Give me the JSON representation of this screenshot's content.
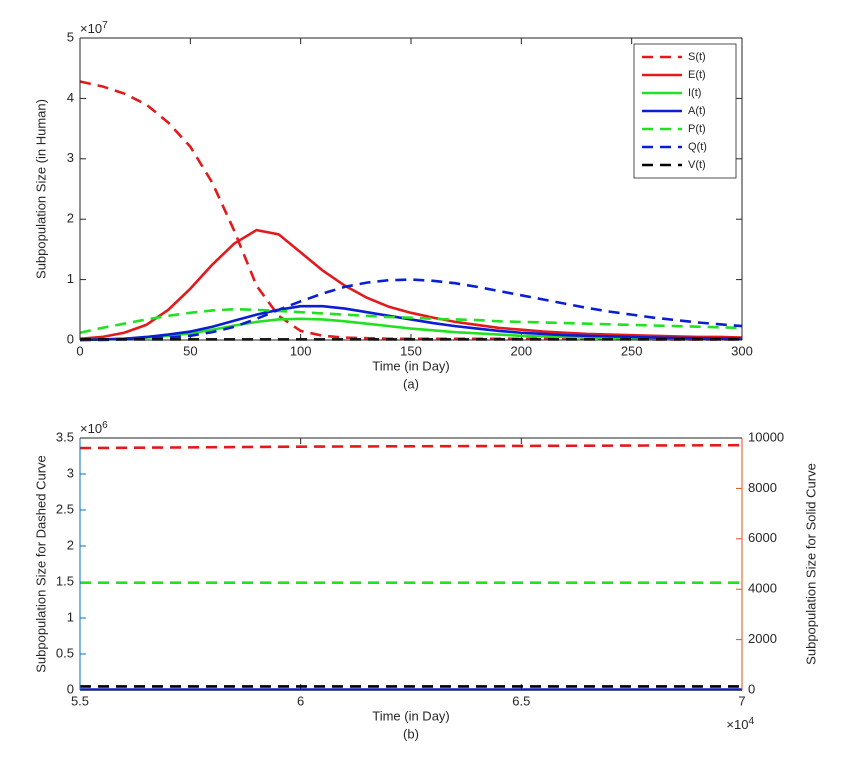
{
  "chart_data": [
    {
      "type": "line",
      "xlabel": "Time (in Day)",
      "ylabel": "Subpopulation Size (in Human)",
      "caption": "(a)",
      "y_multiplier": {
        "base": "×10",
        "exponent": "7"
      },
      "x": [
        0,
        10,
        20,
        30,
        40,
        50,
        60,
        70,
        80,
        90,
        100,
        110,
        120,
        130,
        140,
        150,
        160,
        170,
        180,
        190,
        200,
        210,
        220,
        230,
        240,
        250,
        260,
        270,
        280,
        290,
        300
      ],
      "xlim": [
        0,
        300
      ],
      "xticks": [
        0,
        50,
        100,
        150,
        200,
        250,
        300
      ],
      "ylim": [
        0,
        5
      ],
      "yticks": [
        0,
        1,
        2,
        3,
        4,
        5
      ],
      "legend": "top-right",
      "series": [
        {
          "name": "S(t)",
          "color": "#e31a1c",
          "style": "dashed",
          "values": [
            4.28,
            4.2,
            4.08,
            3.9,
            3.6,
            3.2,
            2.6,
            1.8,
            0.9,
            0.4,
            0.15,
            0.07,
            0.04,
            0.03,
            0.02,
            0.02,
            0.02,
            0.02,
            0.02,
            0.02,
            0.02,
            0.02,
            0.02,
            0.015,
            0.015,
            0.015,
            0.01,
            0.01,
            0.01,
            0.01,
            0.01
          ]
        },
        {
          "name": "E(t)",
          "color": "#e31a1c",
          "style": "solid",
          "values": [
            0.02,
            0.05,
            0.12,
            0.25,
            0.5,
            0.85,
            1.25,
            1.6,
            1.82,
            1.75,
            1.45,
            1.15,
            0.9,
            0.7,
            0.55,
            0.45,
            0.37,
            0.3,
            0.25,
            0.2,
            0.17,
            0.14,
            0.12,
            0.1,
            0.09,
            0.08,
            0.07,
            0.06,
            0.05,
            0.05,
            0.04
          ]
        },
        {
          "name": "I(t)",
          "color": "#22e022",
          "style": "solid",
          "values": [
            0,
            0.01,
            0.02,
            0.04,
            0.07,
            0.11,
            0.17,
            0.24,
            0.3,
            0.34,
            0.35,
            0.34,
            0.31,
            0.27,
            0.23,
            0.19,
            0.16,
            0.13,
            0.11,
            0.09,
            0.07,
            0.06,
            0.05,
            0.04,
            0.035,
            0.03,
            0.025,
            0.02,
            0.02,
            0.015,
            0.015
          ]
        },
        {
          "name": "A(t)",
          "color": "#0a1ed2",
          "style": "solid",
          "values": [
            0,
            0.01,
            0.02,
            0.05,
            0.09,
            0.14,
            0.22,
            0.32,
            0.42,
            0.5,
            0.56,
            0.56,
            0.52,
            0.46,
            0.4,
            0.34,
            0.28,
            0.23,
            0.19,
            0.15,
            0.12,
            0.1,
            0.08,
            0.07,
            0.06,
            0.05,
            0.04,
            0.035,
            0.03,
            0.025,
            0.02
          ]
        },
        {
          "name": "P(t)",
          "color": "#22e022",
          "style": "dashed",
          "values": [
            0.12,
            0.2,
            0.27,
            0.34,
            0.4,
            0.45,
            0.49,
            0.51,
            0.5,
            0.48,
            0.46,
            0.44,
            0.42,
            0.4,
            0.38,
            0.37,
            0.35,
            0.34,
            0.33,
            0.31,
            0.3,
            0.29,
            0.28,
            0.27,
            0.26,
            0.25,
            0.24,
            0.23,
            0.22,
            0.21,
            0.2
          ]
        },
        {
          "name": "Q(t)",
          "color": "#0a1ed2",
          "style": "dashed",
          "values": [
            0,
            0,
            0.01,
            0.02,
            0.04,
            0.07,
            0.13,
            0.22,
            0.35,
            0.5,
            0.64,
            0.77,
            0.88,
            0.95,
            0.99,
            1.0,
            0.98,
            0.94,
            0.88,
            0.81,
            0.74,
            0.67,
            0.6,
            0.53,
            0.47,
            0.42,
            0.37,
            0.33,
            0.29,
            0.26,
            0.23
          ]
        },
        {
          "name": "V(t)",
          "color": "#000000",
          "style": "dashed",
          "values": [
            0.01,
            0.01,
            0.01,
            0.01,
            0.01,
            0.01,
            0.01,
            0.01,
            0.01,
            0.01,
            0.01,
            0.01,
            0.01,
            0.01,
            0.01,
            0.01,
            0.01,
            0.01,
            0.01,
            0.01,
            0.01,
            0.01,
            0.01,
            0.01,
            0.01,
            0.01,
            0.01,
            0.01,
            0.01,
            0.01,
            0.01
          ]
        }
      ]
    },
    {
      "type": "line",
      "xlabel": "Time (in Day)",
      "ylabel": "Subpopulation Size for Dashed Curve",
      "y2label": "Subpopulation Size for Solid Curve",
      "caption": "(b)",
      "y_multiplier": {
        "base": "×10",
        "exponent": "6"
      },
      "x_multiplier": {
        "base": "×10",
        "exponent": "4"
      },
      "ycolor": "#0072bd",
      "y2color": "#d95319",
      "x": [
        5.5,
        6,
        6.5,
        7
      ],
      "xlim": [
        5.5,
        7
      ],
      "xticks": [
        5.5,
        6,
        6.5,
        7
      ],
      "ylim": [
        0,
        3.5
      ],
      "yticks": [
        0,
        0.5,
        1,
        1.5,
        2,
        2.5,
        3,
        3.5
      ],
      "y2lim": [
        0,
        10000
      ],
      "y2ticks": [
        0,
        2000,
        4000,
        6000,
        8000,
        10000
      ],
      "series": [
        {
          "color": "#e31a1c",
          "style": "dashed",
          "values": [
            3.36,
            3.38,
            3.39,
            3.4
          ]
        },
        {
          "color": "#22e022",
          "style": "dashed",
          "values": [
            1.49,
            1.49,
            1.49,
            1.49
          ]
        },
        {
          "color": "#000000",
          "style": "dashed",
          "values": [
            0.05,
            0.05,
            0.05,
            0.05
          ]
        },
        {
          "color": "#0a1ed2",
          "style": "solid",
          "axis": "y2",
          "values": [
            20,
            20,
            20,
            20
          ]
        }
      ]
    }
  ]
}
